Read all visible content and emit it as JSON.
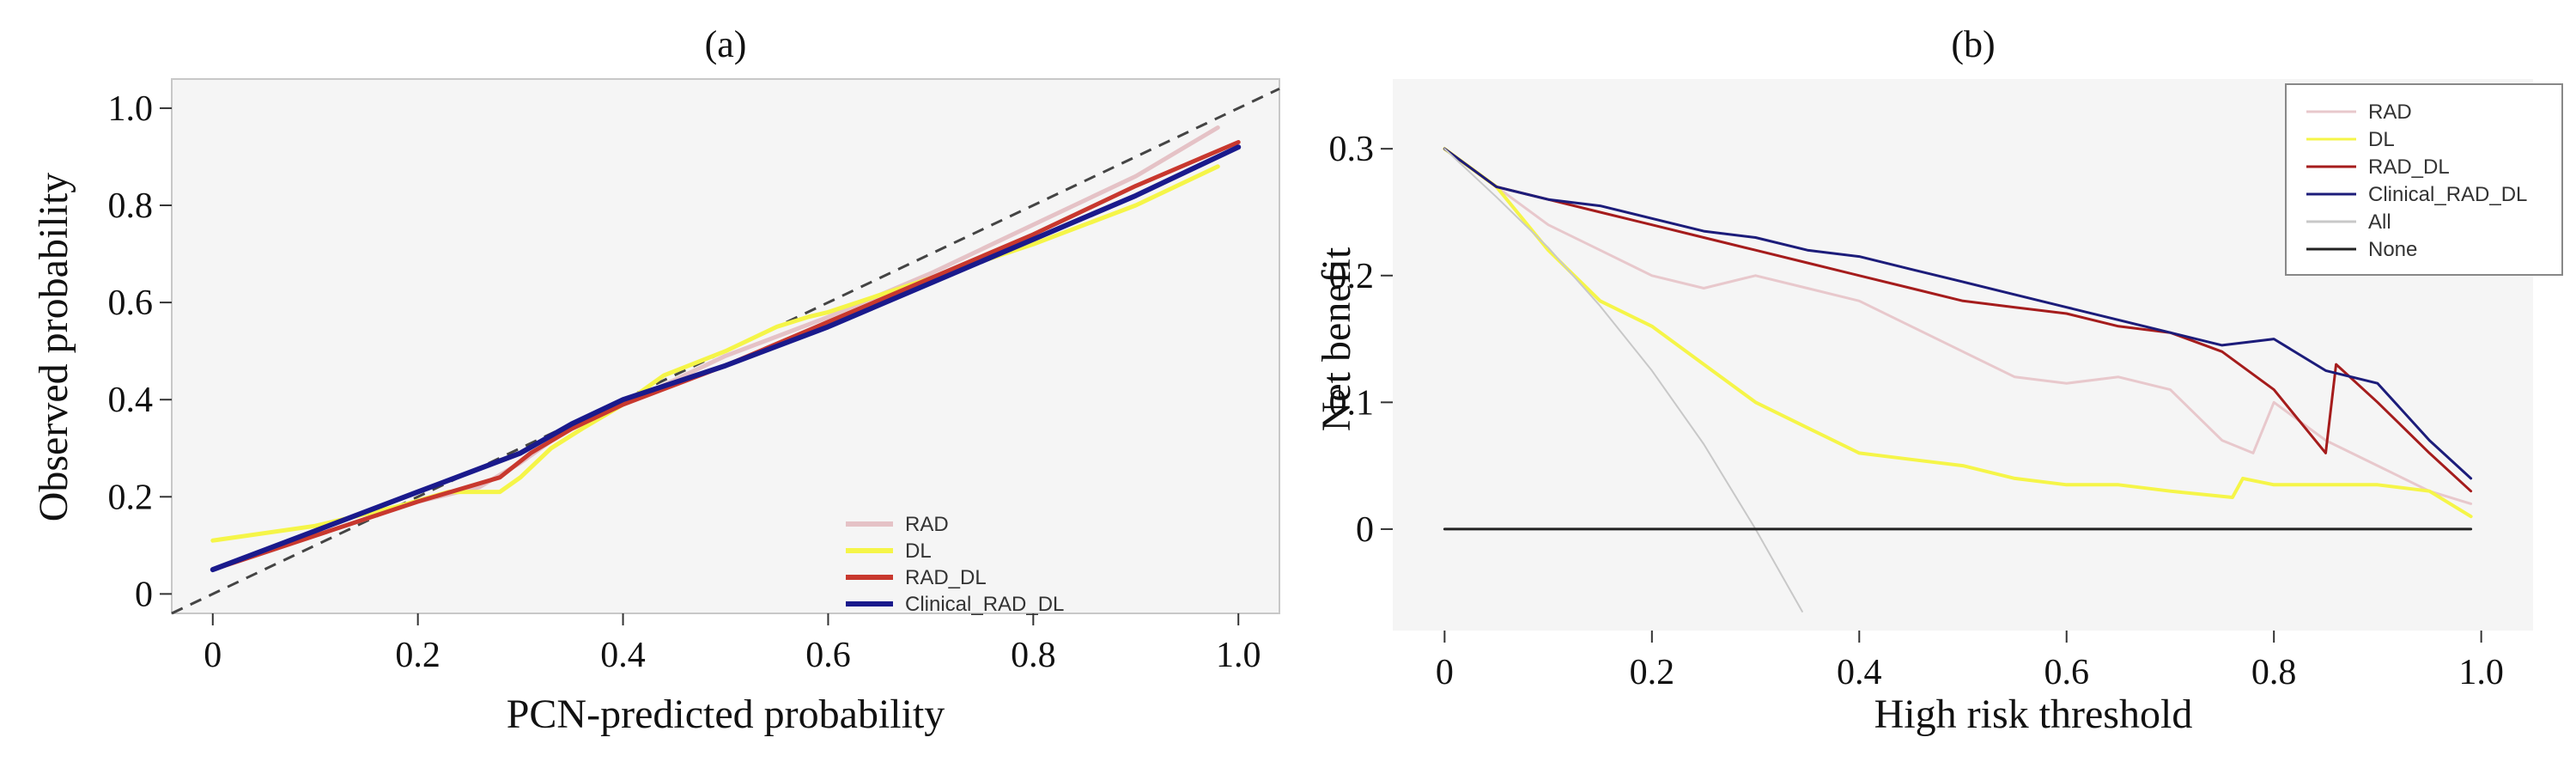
{
  "chart_data": [
    {
      "id": "a",
      "type": "line",
      "title": "(a)",
      "xlabel": "PCN-predicted probability",
      "ylabel": "Observed probability",
      "xlim": [
        -0.04,
        1.04
      ],
      "ylim": [
        -0.04,
        1.06
      ],
      "xticks": [
        0,
        0.2,
        0.4,
        0.6,
        0.8,
        1.0
      ],
      "xtick_labels": [
        "0",
        "0.2",
        "0.4",
        "0.6",
        "0.8",
        "1.0"
      ],
      "yticks": [
        0,
        0.2,
        0.4,
        0.6,
        0.8,
        1.0
      ],
      "ytick_labels": [
        "0",
        "0.2",
        "0.4",
        "0.6",
        "0.8",
        "1.0"
      ],
      "grid": false,
      "background": "#f5f5f5",
      "legend_position": "bottom-right",
      "reference_line": {
        "x": [
          -0.04,
          1.04
        ],
        "y": [
          -0.04,
          1.04
        ],
        "color": "#444444",
        "dash": true
      },
      "series": [
        {
          "name": "RAD",
          "color": "#e5c2c6",
          "x": [
            0,
            0.1,
            0.2,
            0.26,
            0.3,
            0.34,
            0.38,
            0.42,
            0.5,
            0.6,
            0.7,
            0.8,
            0.9,
            0.98
          ],
          "y": [
            0.05,
            0.12,
            0.19,
            0.22,
            0.27,
            0.33,
            0.37,
            0.41,
            0.49,
            0.57,
            0.66,
            0.76,
            0.86,
            0.96
          ]
        },
        {
          "name": "DL",
          "color": "#f5f548",
          "x": [
            0,
            0.1,
            0.18,
            0.23,
            0.28,
            0.3,
            0.33,
            0.36,
            0.4,
            0.44,
            0.5,
            0.55,
            0.58,
            0.6,
            0.7,
            0.8,
            0.9,
            0.98
          ],
          "y": [
            0.11,
            0.14,
            0.18,
            0.21,
            0.21,
            0.24,
            0.3,
            0.34,
            0.39,
            0.45,
            0.5,
            0.55,
            0.57,
            0.58,
            0.65,
            0.72,
            0.8,
            0.88
          ]
        },
        {
          "name": "RAD_DL",
          "color": "#c8382e",
          "x": [
            0,
            0.1,
            0.2,
            0.28,
            0.31,
            0.35,
            0.4,
            0.5,
            0.6,
            0.7,
            0.8,
            0.9,
            1.0
          ],
          "y": [
            0.05,
            0.12,
            0.19,
            0.24,
            0.29,
            0.34,
            0.39,
            0.47,
            0.56,
            0.65,
            0.74,
            0.84,
            0.93
          ]
        },
        {
          "name": "Clinical_RAD_DL",
          "color": "#1a1a8c",
          "x": [
            0,
            0.1,
            0.2,
            0.3,
            0.35,
            0.4,
            0.5,
            0.6,
            0.7,
            0.8,
            0.9,
            1.0
          ],
          "y": [
            0.05,
            0.13,
            0.21,
            0.29,
            0.35,
            0.4,
            0.47,
            0.55,
            0.64,
            0.73,
            0.82,
            0.92
          ]
        }
      ]
    },
    {
      "id": "b",
      "type": "line",
      "title": "(b)",
      "xlabel": "High risk threshold",
      "ylabel": "Net benefit",
      "xlim": [
        -0.05,
        1.05
      ],
      "ylim": [
        -0.08,
        0.355
      ],
      "xticks": [
        0,
        0.2,
        0.4,
        0.6,
        0.8,
        1.0
      ],
      "xtick_labels": [
        "0",
        "0.2",
        "0.4",
        "0.6",
        "0.8",
        "1.0"
      ],
      "yticks": [
        0,
        0.1,
        0.2,
        0.3
      ],
      "ytick_labels": [
        "0",
        "0.1",
        "0.2",
        "0.3"
      ],
      "grid": false,
      "background": "#f5f5f5",
      "legend_position": "top-right",
      "series": [
        {
          "name": "RAD",
          "color": "#e8c8cc",
          "x": [
            0,
            0.05,
            0.1,
            0.15,
            0.2,
            0.25,
            0.3,
            0.35,
            0.4,
            0.45,
            0.5,
            0.55,
            0.6,
            0.65,
            0.7,
            0.75,
            0.78,
            0.8,
            0.85,
            0.9,
            0.95,
            0.99
          ],
          "y": [
            0.3,
            0.27,
            0.24,
            0.22,
            0.2,
            0.19,
            0.2,
            0.19,
            0.18,
            0.16,
            0.14,
            0.12,
            0.115,
            0.12,
            0.11,
            0.07,
            0.06,
            0.1,
            0.07,
            0.05,
            0.03,
            0.02
          ]
        },
        {
          "name": "DL",
          "color": "#f5f548",
          "x": [
            0,
            0.05,
            0.1,
            0.15,
            0.2,
            0.25,
            0.3,
            0.35,
            0.4,
            0.45,
            0.5,
            0.55,
            0.6,
            0.65,
            0.7,
            0.76,
            0.77,
            0.8,
            0.9,
            0.95,
            0.99
          ],
          "y": [
            0.3,
            0.27,
            0.22,
            0.18,
            0.16,
            0.13,
            0.1,
            0.08,
            0.06,
            0.055,
            0.05,
            0.04,
            0.035,
            0.035,
            0.03,
            0.025,
            0.04,
            0.035,
            0.035,
            0.03,
            0.01
          ]
        },
        {
          "name": "RAD_DL",
          "color": "#a51c1c",
          "x": [
            0,
            0.05,
            0.1,
            0.15,
            0.2,
            0.25,
            0.3,
            0.35,
            0.4,
            0.45,
            0.5,
            0.55,
            0.6,
            0.65,
            0.7,
            0.75,
            0.8,
            0.85,
            0.86,
            0.9,
            0.95,
            0.99
          ],
          "y": [
            0.3,
            0.27,
            0.26,
            0.25,
            0.24,
            0.23,
            0.22,
            0.21,
            0.2,
            0.19,
            0.18,
            0.175,
            0.17,
            0.16,
            0.155,
            0.14,
            0.11,
            0.06,
            0.13,
            0.1,
            0.06,
            0.03
          ]
        },
        {
          "name": "Clinical_RAD_DL",
          "color": "#1c1c7a",
          "x": [
            0,
            0.05,
            0.1,
            0.15,
            0.2,
            0.25,
            0.3,
            0.35,
            0.4,
            0.45,
            0.5,
            0.55,
            0.6,
            0.65,
            0.7,
            0.75,
            0.8,
            0.85,
            0.9,
            0.95,
            0.99
          ],
          "y": [
            0.3,
            0.27,
            0.26,
            0.255,
            0.245,
            0.235,
            0.23,
            0.22,
            0.215,
            0.205,
            0.195,
            0.185,
            0.175,
            0.165,
            0.155,
            0.145,
            0.15,
            0.125,
            0.115,
            0.07,
            0.04
          ]
        },
        {
          "name": "All",
          "color": "#c8c8c8",
          "x": [
            0,
            0.05,
            0.1,
            0.15,
            0.2,
            0.25,
            0.3,
            0.345
          ],
          "y": [
            0.3,
            0.262,
            0.222,
            0.176,
            0.125,
            0.067,
            0.0,
            -0.065
          ]
        },
        {
          "name": "None",
          "color": "#222222",
          "x": [
            0,
            0.99
          ],
          "y": [
            0,
            0
          ]
        }
      ]
    }
  ]
}
